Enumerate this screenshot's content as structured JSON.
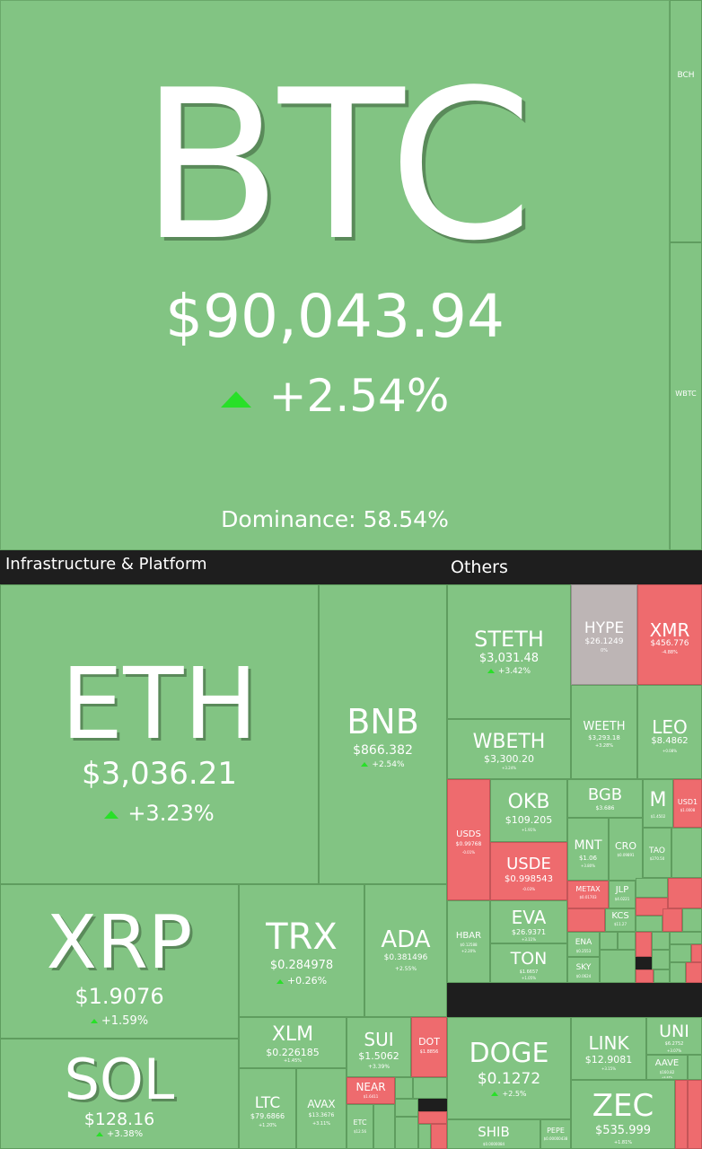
{
  "btc": {
    "symbol": "BTC",
    "price": "$90,043.94",
    "change": "+2.54%",
    "dominance": "Dominance: 58.54%"
  },
  "right_strip": {
    "bch": "BCH",
    "wbtc": "WBTC"
  },
  "sections": {
    "infra": "Infrastructure & Platform",
    "others": "Others"
  },
  "tiles": {
    "eth": {
      "symbol": "ETH",
      "price": "$3,036.21",
      "change": "+3.23%"
    },
    "bnb": {
      "symbol": "BNB",
      "price": "$866.382",
      "change": "+2.54%"
    },
    "xrp": {
      "symbol": "XRP",
      "price": "$1.9076",
      "change": "+1.59%"
    },
    "trx": {
      "symbol": "TRX",
      "price": "$0.284978",
      "change": "+0.26%"
    },
    "ada": {
      "symbol": "ADA",
      "price": "$0.381496",
      "change": "+2.55%"
    },
    "sol": {
      "symbol": "SOL",
      "price": "$128.16",
      "change": "+3.38%"
    },
    "xlm": {
      "symbol": "XLM",
      "price": "$0.226185",
      "change": "+1.45%"
    },
    "sui": {
      "symbol": "SUI",
      "price": "$1.5062",
      "change": "+3.39%"
    },
    "dot": {
      "symbol": "DOT",
      "price": "$1.8856"
    },
    "ltc": {
      "symbol": "LTC",
      "price": "$79.6866",
      "change": "+1.20%"
    },
    "avax": {
      "symbol": "AVAX",
      "price": "$13.3676",
      "change": "+3.11%"
    },
    "near": {
      "symbol": "NEAR",
      "price": "$1.6411"
    },
    "etc": {
      "symbol": "ETC",
      "price": "$12.56"
    },
    "steth": {
      "symbol": "STETH",
      "price": "$3,031.48",
      "change": "+3.42%"
    },
    "hype": {
      "symbol": "HYPE",
      "price": "$26.1249",
      "change": "0%"
    },
    "xmr": {
      "symbol": "XMR",
      "price": "$456.776",
      "change": "-4.88%"
    },
    "wbeth": {
      "symbol": "WBETH",
      "price": "$3,300.20",
      "change": "+3.24%"
    },
    "weeth": {
      "symbol": "WEETH",
      "price": "$3,293.18",
      "change": "+3.28%"
    },
    "leo": {
      "symbol": "LEO",
      "price": "$8.4862",
      "change": "+0.08%"
    },
    "usds": {
      "symbol": "USDS",
      "price": "$0.99768",
      "change": "-0.01%"
    },
    "okb": {
      "symbol": "OKB",
      "price": "$109.205",
      "change": "+1.91%"
    },
    "bgb": {
      "symbol": "BGB",
      "price": "$3.686",
      "change": "+2.11%"
    },
    "m": {
      "symbol": "M",
      "price": "$1.4502"
    },
    "usd1": {
      "symbol": "USD1",
      "price": "$1.0008"
    },
    "usde": {
      "symbol": "USDE",
      "price": "$0.998543",
      "change": "-0.03%"
    },
    "mnt": {
      "symbol": "MNT",
      "price": "$1.06",
      "change": "+3.80%"
    },
    "cro": {
      "symbol": "CRO",
      "price": "$0.09891"
    },
    "tao": {
      "symbol": "TAO",
      "price": "$270.50"
    },
    "metax": {
      "symbol": "METAX",
      "price": "$0.01703"
    },
    "jlp": {
      "symbol": "JLP",
      "price": "$4.0221"
    },
    "kcs": {
      "symbol": "KCS",
      "price": "$11.27"
    },
    "eva": {
      "symbol": "EVA",
      "price": "$26.9371",
      "change": "+3.11%"
    },
    "hbar": {
      "symbol": "HBAR",
      "price": "$0.12588",
      "change": "+2.20%"
    },
    "ena": {
      "symbol": "ENA",
      "price": "$0.2553"
    },
    "ton": {
      "symbol": "TON",
      "price": "$1.6657",
      "change": "+1.05%"
    },
    "sky": {
      "symbol": "SKY",
      "price": "$0.0624"
    },
    "doge": {
      "symbol": "DOGE",
      "price": "$0.1272",
      "change": "+2.5%"
    },
    "shib": {
      "symbol": "SHIB",
      "price": "$0.0000084"
    },
    "pepe": {
      "symbol": "PEPE",
      "price": "$0.00000438"
    },
    "link": {
      "symbol": "LINK",
      "price": "$12.9081",
      "change": "+3.15%"
    },
    "uni": {
      "symbol": "UNI",
      "price": "$6.2752",
      "change": "+3.07%"
    },
    "aave": {
      "symbol": "AAVE",
      "price": "$160.82",
      "change": "+2.43%"
    },
    "zec": {
      "symbol": "ZEC",
      "price": "$535.999",
      "change": "+1.81%"
    }
  },
  "colors": {
    "up": "#82c483",
    "down": "#ee6b6e",
    "flat": "#bdb5b5",
    "bg": "#1e1e1e",
    "arrow_up": "#28e028"
  }
}
